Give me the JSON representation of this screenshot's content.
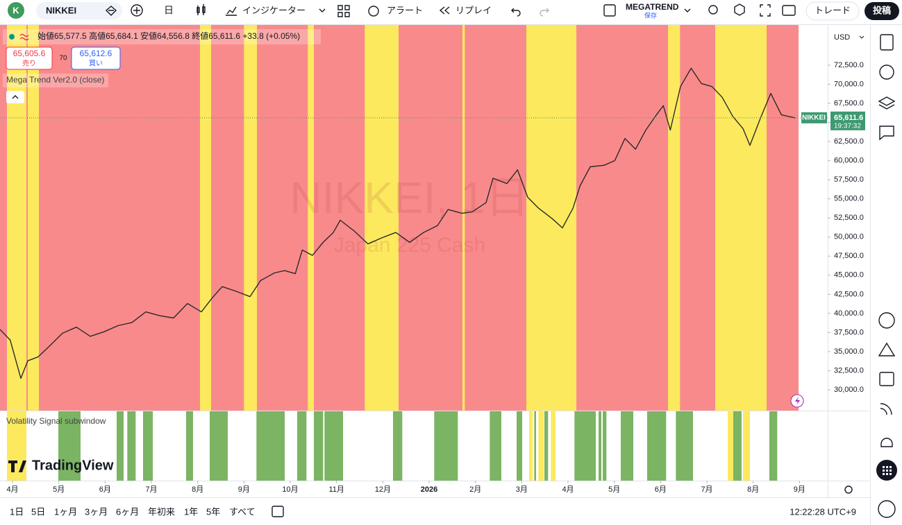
{
  "toolbar": {
    "avatar": "K",
    "symbol": "NIKKEI",
    "interval": "日",
    "indicators": "インジケーター",
    "alert": "アラート",
    "replay": "リプレイ",
    "layout_name": "MEGATREND",
    "layout_status": "保存",
    "trade": "トレード",
    "publish": "投稿"
  },
  "legend": {
    "open_label": "始値",
    "open": "65,577.5",
    "high_label": "高値",
    "high": "65,684.1",
    "low_label": "安値",
    "low": "64,556.8",
    "close_label": "終値",
    "close": "65,611.6",
    "change": "+33.8 (+0.05%)",
    "sell_price": "65,605.6",
    "sell_label": "売り",
    "spread": "70",
    "buy_price": "65,612.6",
    "buy_label": "買い",
    "indicator": "Mega Trend Ver2.0 (close)"
  },
  "watermark": {
    "title": "NIKKEI, 1日",
    "subtitle": "Japan 225 Cash"
  },
  "chart_data": {
    "type": "line",
    "x": [
      -0.27,
      -0.05,
      0.18,
      0.33,
      0.55,
      0.78,
      1.08,
      1.38,
      1.68,
      1.98,
      2.28,
      2.58,
      2.88,
      3.18,
      3.48,
      3.78,
      4.08,
      4.31,
      4.53,
      4.83,
      5.13,
      5.36,
      5.66,
      5.88,
      6.11,
      6.26,
      6.48,
      6.71,
      6.93,
      7.08,
      7.38,
      7.68,
      7.98,
      8.28,
      8.58,
      8.88,
      9.18,
      9.41,
      9.71,
      9.93,
      10.23,
      10.38,
      10.68,
      10.91,
      11.13,
      11.36,
      11.66,
      11.88,
      12.11,
      12.26,
      12.48,
      12.78,
      13.01,
      13.23,
      13.46,
      13.68,
      13.91,
      14.06,
      14.21,
      14.43,
      14.66,
      14.88,
      15.11,
      15.33,
      15.56,
      15.78,
      15.93,
      16.16,
      16.38,
      16.61,
      16.91
    ],
    "series": [
      {
        "name": "NIKKEI",
        "color": "#2a2a2a",
        "values": [
          37900,
          36500,
          31500,
          33800,
          34300,
          35600,
          37400,
          38200,
          37000,
          37600,
          38400,
          38800,
          40200,
          39700,
          39400,
          41300,
          40200,
          42000,
          43500,
          42900,
          42200,
          44300,
          45300,
          45600,
          45200,
          48300,
          47600,
          49300,
          50600,
          52200,
          50800,
          49100,
          49900,
          50600,
          49300,
          50600,
          51500,
          53600,
          53100,
          53300,
          54500,
          57700,
          57000,
          58800,
          55200,
          53800,
          52400,
          51200,
          53800,
          56700,
          59200,
          59400,
          60000,
          62900,
          61500,
          64000,
          66000,
          67200,
          64000,
          69700,
          72100,
          70100,
          69700,
          68300,
          65800,
          64200,
          62000,
          65600,
          68800,
          66000,
          65600
        ]
      }
    ],
    "xlim": [
      -0.27,
      17.61
    ],
    "xticks": [
      {
        "value": 0,
        "label": "4月"
      },
      {
        "value": 1,
        "label": "5月"
      },
      {
        "value": 2,
        "label": "6月"
      },
      {
        "value": 3,
        "label": "7月"
      },
      {
        "value": 4,
        "label": "8月"
      },
      {
        "value": 5,
        "label": "9月"
      },
      {
        "value": 6,
        "label": "10月"
      },
      {
        "value": 7,
        "label": "11月"
      },
      {
        "value": 8,
        "label": "12月"
      },
      {
        "value": 9,
        "label": "2026"
      },
      {
        "value": 10,
        "label": "2月"
      },
      {
        "value": 11,
        "label": "3月"
      },
      {
        "value": 12,
        "label": "4月"
      },
      {
        "value": 13,
        "label": "5月"
      },
      {
        "value": 14,
        "label": "6月"
      },
      {
        "value": 15,
        "label": "7月"
      },
      {
        "value": 16,
        "label": "8月"
      },
      {
        "value": 17,
        "label": "9月"
      }
    ],
    "ylim": [
      27276,
      77767
    ],
    "yticks": [
      {
        "value": 30000,
        "label": "30,000.0"
      },
      {
        "value": 32500,
        "label": "32,500.0"
      },
      {
        "value": 35000,
        "label": "35,000.0"
      },
      {
        "value": 37500,
        "label": "37,500.0"
      },
      {
        "value": 40000,
        "label": "40,000.0"
      },
      {
        "value": 42500,
        "label": "42,500.0"
      },
      {
        "value": 45000,
        "label": "45,000.0"
      },
      {
        "value": 47500,
        "label": "47,500.0"
      },
      {
        "value": 50000,
        "label": "50,000.0"
      },
      {
        "value": 52500,
        "label": "52,500.0"
      },
      {
        "value": 55000,
        "label": "55,000.0"
      },
      {
        "value": 57500,
        "label": "57,500.0"
      },
      {
        "value": 60000,
        "label": "60,000.0"
      },
      {
        "value": 62500,
        "label": "62,500.0"
      },
      {
        "value": 65000,
        "label": "65,000.0"
      },
      {
        "value": 67500,
        "label": "67,500.0"
      },
      {
        "value": 70000,
        "label": "70,000.0"
      },
      {
        "value": 72500,
        "label": "72,500.0"
      }
    ],
    "currency": "USD",
    "last_price": {
      "value": 65611.6,
      "label": "65,611.6"
    },
    "countdown": "19:37:32",
    "bands": {
      "base_color": "#f98a8b",
      "base_range": [
        -0.27,
        16.98
      ],
      "highlight_color": "#fce95e",
      "highlights": [
        [
          -0.12,
          0.3
        ],
        [
          0.33,
          0.57
        ],
        [
          4.05,
          4.29
        ],
        [
          5.0,
          5.28
        ],
        [
          6.38,
          6.51
        ],
        [
          7.61,
          8.34
        ],
        [
          9.72,
          9.77
        ],
        [
          11.1,
          12.18
        ],
        [
          14.16,
          14.42
        ],
        [
          15.18,
          16.29
        ]
      ]
    },
    "subwindow": {
      "title": "Volatility Signal subwindow",
      "green_color": "#7bb463",
      "yellow_color": "#fce95e",
      "green": [
        [
          0.99,
          1.47
        ],
        [
          2.25,
          2.4
        ],
        [
          2.48,
          2.66
        ],
        [
          2.82,
          3.03
        ],
        [
          3.75,
          3.9
        ],
        [
          4.26,
          4.65
        ],
        [
          5.27,
          5.88
        ],
        [
          6.15,
          6.35
        ],
        [
          6.51,
          6.71
        ],
        [
          6.74,
          7.14
        ],
        [
          8.22,
          8.42
        ],
        [
          9.11,
          9.62
        ],
        [
          10.31,
          10.56
        ],
        [
          10.89,
          11.01
        ],
        [
          11.27,
          11.31
        ],
        [
          11.49,
          11.57
        ],
        [
          12.14,
          12.6
        ],
        [
          12.66,
          12.72
        ],
        [
          12.75,
          12.83
        ],
        [
          13.14,
          13.41
        ],
        [
          13.71,
          14.12
        ],
        [
          14.33,
          14.7
        ],
        [
          15.57,
          15.75
        ],
        [
          16.35,
          16.52
        ]
      ],
      "yellow": [
        [
          -0.12,
          0.3
        ],
        [
          11.16,
          11.24
        ],
        [
          11.36,
          11.48
        ],
        [
          11.63,
          11.73
        ],
        [
          15.45,
          15.6
        ],
        [
          15.78,
          15.93
        ]
      ]
    }
  },
  "bottom": {
    "brand": "TradingView",
    "periods": [
      "1日",
      "5日",
      "1ヶ月",
      "3ヶ月",
      "6ヶ月",
      "年初来",
      "1年",
      "5年",
      "すべて"
    ],
    "clock": "12:22:28 UTC+9"
  }
}
